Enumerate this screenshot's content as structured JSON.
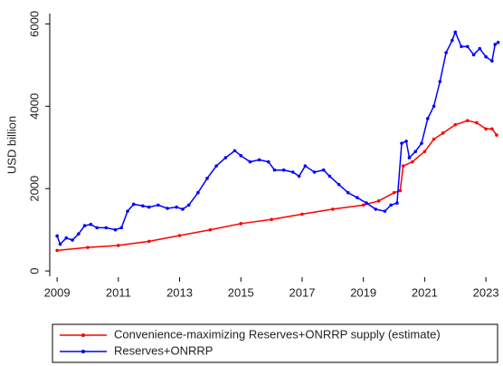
{
  "chart_data": {
    "type": "line",
    "ylabel": "USD billion",
    "xlim": [
      2008.76,
      2023.47
    ],
    "ylim": [
      -130,
      6250
    ],
    "xticks": [
      2009,
      2011,
      2013,
      2015,
      2017,
      2019,
      2021,
      2023
    ],
    "yticks": [
      0,
      2000,
      4000,
      6000
    ],
    "legend": "bottom",
    "series": [
      {
        "name": "Convenience-maximizing Reserves+ONRRP supply (estimate)",
        "color": "#ff0000",
        "x": [
          2009.0,
          2010.0,
          2011.0,
          2012.0,
          2013.0,
          2014.0,
          2015.0,
          2016.0,
          2017.0,
          2018.0,
          2019.0,
          2019.5,
          2020.0,
          2020.2,
          2020.3,
          2020.6,
          2021.0,
          2021.3,
          2021.6,
          2022.0,
          2022.4,
          2022.7,
          2023.0,
          2023.2,
          2023.35
        ],
        "values": [
          500,
          570,
          620,
          720,
          860,
          1000,
          1150,
          1250,
          1380,
          1500,
          1600,
          1700,
          1900,
          1950,
          2550,
          2650,
          2900,
          3200,
          3350,
          3550,
          3650,
          3600,
          3450,
          3450,
          3300
        ]
      },
      {
        "name": "Reserves+ONRRP",
        "color": "#0000ff",
        "x": [
          2009.0,
          2009.1,
          2009.3,
          2009.5,
          2009.7,
          2009.9,
          2010.1,
          2010.3,
          2010.6,
          2010.9,
          2011.1,
          2011.3,
          2011.5,
          2011.8,
          2012.0,
          2012.3,
          2012.6,
          2012.9,
          2013.1,
          2013.3,
          2013.6,
          2013.9,
          2014.2,
          2014.5,
          2014.8,
          2015.0,
          2015.3,
          2015.6,
          2015.9,
          2016.1,
          2016.4,
          2016.7,
          2016.9,
          2017.1,
          2017.4,
          2017.7,
          2017.9,
          2018.2,
          2018.5,
          2018.8,
          2019.1,
          2019.4,
          2019.7,
          2019.9,
          2020.1,
          2020.25,
          2020.4,
          2020.5,
          2020.7,
          2020.9,
          2021.1,
          2021.3,
          2021.5,
          2021.7,
          2021.9,
          2022.0,
          2022.2,
          2022.4,
          2022.6,
          2022.8,
          2023.0,
          2023.2,
          2023.3,
          2023.4
        ],
        "values": [
          850,
          650,
          800,
          750,
          900,
          1100,
          1130,
          1050,
          1050,
          1000,
          1050,
          1450,
          1620,
          1580,
          1550,
          1600,
          1520,
          1550,
          1500,
          1600,
          1900,
          2250,
          2550,
          2750,
          2920,
          2800,
          2650,
          2700,
          2650,
          2450,
          2450,
          2400,
          2300,
          2550,
          2400,
          2450,
          2300,
          2100,
          1900,
          1780,
          1650,
          1500,
          1450,
          1600,
          1650,
          3100,
          3150,
          2750,
          2900,
          3100,
          3700,
          4000,
          4600,
          5300,
          5600,
          5800,
          5450,
          5450,
          5250,
          5400,
          5200,
          5100,
          5500,
          5550
        ]
      }
    ]
  }
}
